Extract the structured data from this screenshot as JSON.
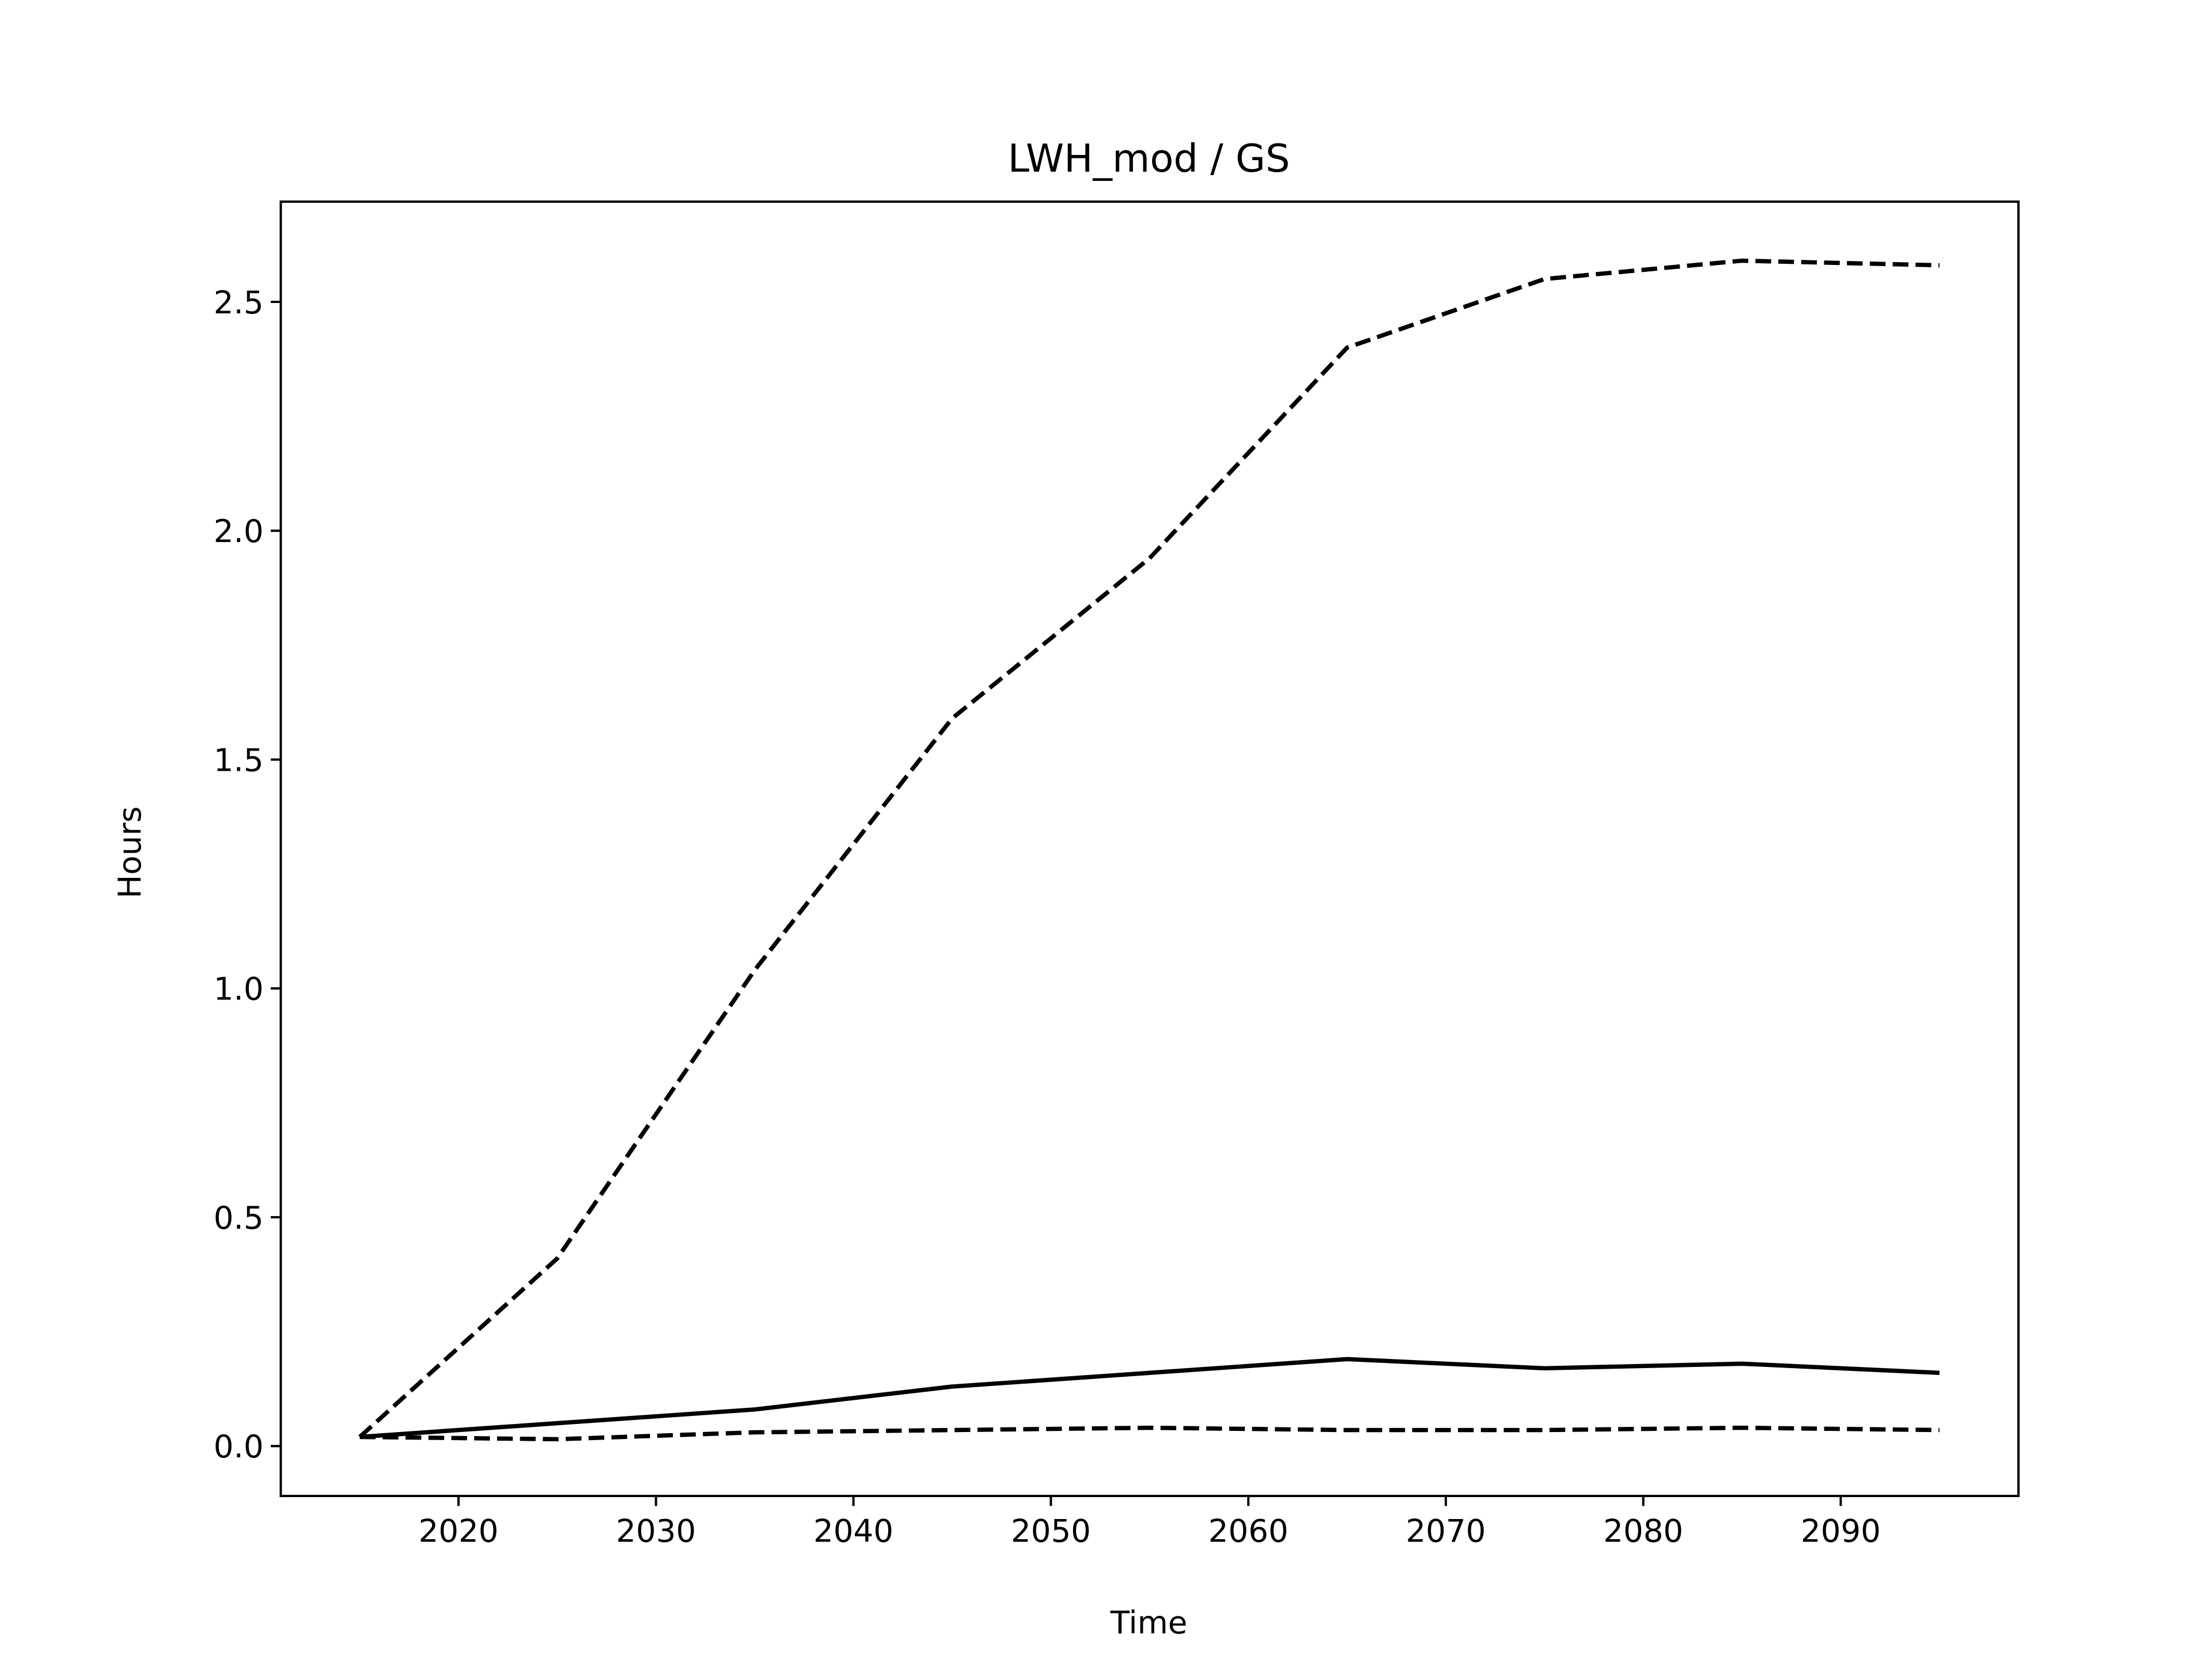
{
  "chart_data": {
    "type": "line",
    "title": "LWH_mod / GS",
    "x_label": "Time",
    "y_label": "Hours",
    "x": [
      2015,
      2025,
      2035,
      2045,
      2055,
      2065,
      2075,
      2085,
      2095
    ],
    "series": [
      {
        "color": "#000000",
        "style": "dashed",
        "values": [
          0.02,
          0.41,
          1.04,
          1.59,
          1.94,
          2.4,
          2.55,
          2.59,
          2.58
        ]
      },
      {
        "color": "#000000",
        "style": "solid",
        "values": [
          0.02,
          0.05,
          0.08,
          0.13,
          0.16,
          0.19,
          0.17,
          0.18,
          0.16
        ]
      },
      {
        "color": "#000000",
        "style": "dashed",
        "values": [
          0.02,
          0.015,
          0.03,
          0.035,
          0.04,
          0.035,
          0.035,
          0.04,
          0.035
        ]
      }
    ],
    "xlim": [
      2011,
      2099
    ],
    "ylim": [
      -0.109,
      2.719
    ],
    "xticks": [
      2020,
      2030,
      2040,
      2050,
      2060,
      2070,
      2080,
      2090
    ],
    "yticks": [
      {
        "value": 0,
        "label": "0.0"
      },
      0.5,
      {
        "value": 1,
        "label": "1.0"
      },
      1.5,
      {
        "value": 2,
        "label": "2.0"
      },
      2.5
    ],
    "grid": false
  }
}
